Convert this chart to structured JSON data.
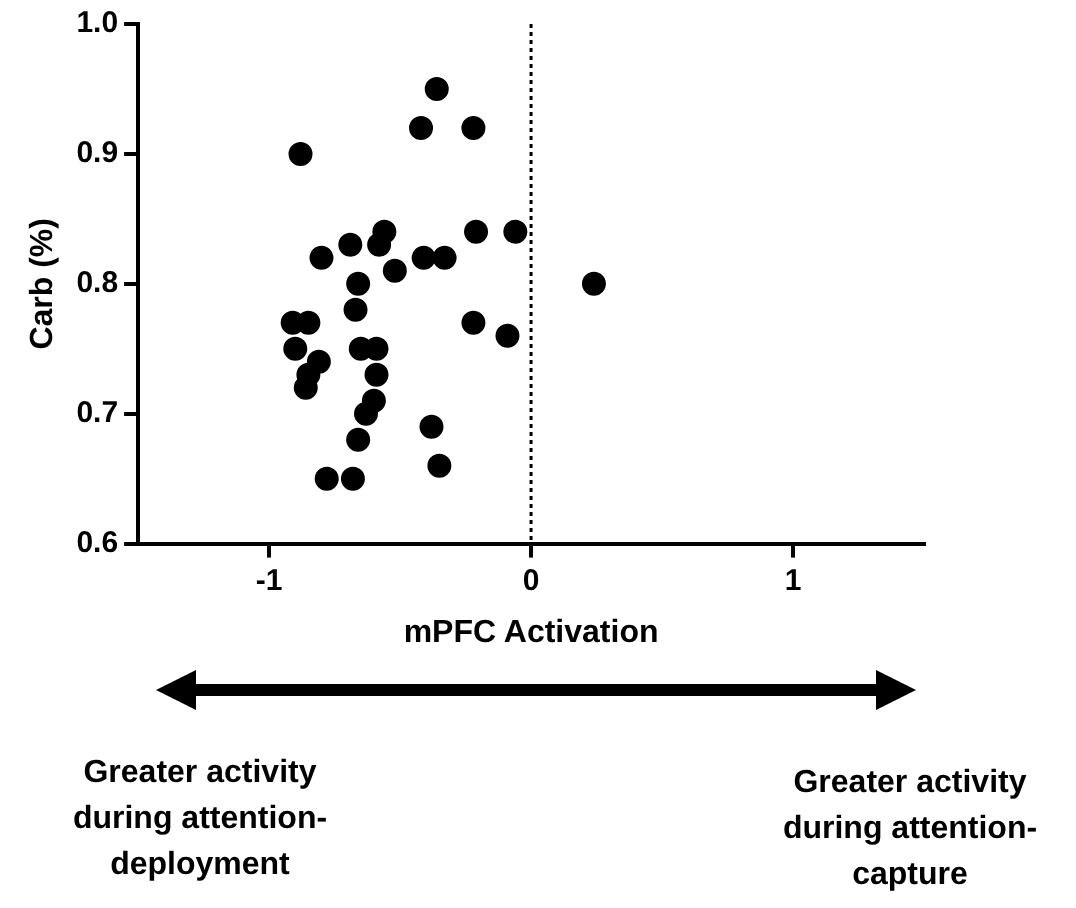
{
  "chart_data": {
    "type": "scatter",
    "xlabel": "mPFC Activation",
    "ylabel": "Carb (%)",
    "x": [
      -0.88,
      -0.36,
      -0.42,
      -0.22,
      -0.56,
      -0.58,
      -0.69,
      -0.8,
      -0.41,
      -0.33,
      -0.21,
      -0.06,
      -0.52,
      -0.66,
      0.24,
      -0.67,
      -0.91,
      -0.85,
      -0.22,
      -0.09,
      -0.9,
      -0.65,
      -0.59,
      -0.81,
      -0.85,
      -0.59,
      -0.86,
      -0.6,
      -0.63,
      -0.38,
      -0.66,
      -0.35,
      -0.78,
      -0.68
    ],
    "series": [
      {
        "color": "#000000",
        "values": [
          0.9,
          0.95,
          0.92,
          0.92,
          0.84,
          0.83,
          0.83,
          0.82,
          0.82,
          0.82,
          0.84,
          0.84,
          0.81,
          0.8,
          0.8,
          0.78,
          0.77,
          0.77,
          0.77,
          0.76,
          0.75,
          0.75,
          0.75,
          0.74,
          0.73,
          0.73,
          0.72,
          0.71,
          0.7,
          0.69,
          0.68,
          0.66,
          0.65,
          0.65
        ]
      }
    ],
    "xlim": [
      -1.5,
      1.5
    ],
    "xticks": [
      -1,
      0,
      1
    ],
    "ylim": [
      0.6,
      1
    ],
    "yticks": [
      0.6,
      0.7,
      0.8,
      0.9,
      {
        "value": 1,
        "label": "1.0"
      }
    ],
    "grid": false,
    "legend": false,
    "marker": "circle",
    "ref_lines": [
      {
        "axis": "x",
        "value": 0,
        "line_style": "dotted",
        "color": "#000000"
      }
    ],
    "annotations": [
      "Greater activity during attention-deployment",
      "Greater activity during attention-capture"
    ]
  }
}
